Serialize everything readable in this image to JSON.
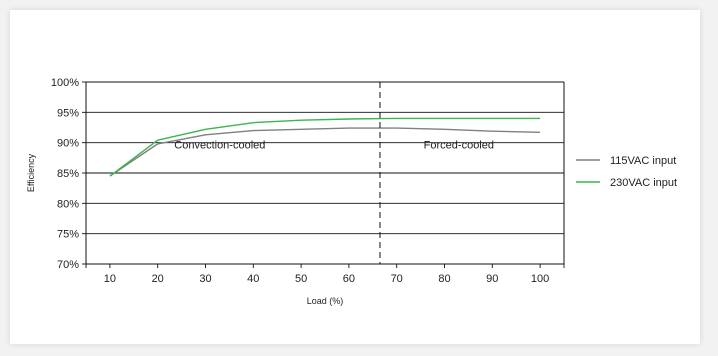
{
  "chart_data": {
    "type": "line",
    "title": "",
    "xlabel": "Load (%)",
    "ylabel": "Efficiency",
    "x": [
      10,
      20,
      30,
      40,
      50,
      60,
      70,
      80,
      90,
      100
    ],
    "xticks": [
      10,
      20,
      30,
      40,
      50,
      60,
      70,
      80,
      90,
      100
    ],
    "yticks": [
      70,
      75,
      80,
      85,
      90,
      95,
      100
    ],
    "ytick_labels": [
      "70%",
      "75%",
      "80%",
      "85%",
      "90%",
      "95%",
      "100%"
    ],
    "ylim": [
      70,
      100
    ],
    "grid": "horizontal",
    "legend_position": "right",
    "series": [
      {
        "name": "115VAC input",
        "color": "#808080",
        "values": [
          84.5,
          89.8,
          91.3,
          92.0,
          92.2,
          92.4,
          92.4,
          92.2,
          91.9,
          91.7
        ]
      },
      {
        "name": "230VAC input",
        "color": "#3cb54a",
        "values": [
          84.5,
          90.4,
          92.2,
          93.3,
          93.7,
          93.9,
          94.0,
          94.0,
          94.0,
          94.0
        ]
      }
    ],
    "divider_x": 66.5,
    "regions": [
      {
        "label": "Convection-cooled",
        "x": 33
      },
      {
        "label": "Forced-cooled",
        "x": 83
      }
    ]
  }
}
